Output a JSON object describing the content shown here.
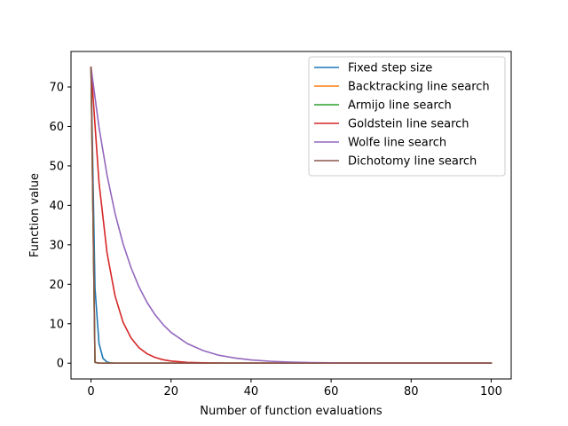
{
  "chart_data": {
    "type": "line",
    "title": "",
    "xlabel": "Number of function evaluations",
    "ylabel": "Function value",
    "xlim": [
      -5,
      105
    ],
    "ylim": [
      -4,
      79
    ],
    "xticks": [
      0,
      20,
      40,
      60,
      80,
      100
    ],
    "yticks": [
      0,
      10,
      20,
      30,
      40,
      50,
      60,
      70
    ],
    "grid": false,
    "legend_position": "upper right",
    "series": [
      {
        "name": "Fixed step size",
        "color": "#1f77b4",
        "x": [
          0,
          1,
          2,
          3,
          4,
          5,
          6,
          8,
          10,
          100
        ],
        "y": [
          75,
          19,
          5,
          1.2,
          0.3,
          0.08,
          0.02,
          0,
          0,
          0
        ]
      },
      {
        "name": "Backtracking line search",
        "color": "#ff7f0e",
        "x": [
          0,
          1,
          2,
          100
        ],
        "y": [
          75,
          0.2,
          0,
          0
        ]
      },
      {
        "name": "Armijo line search",
        "color": "#2ca02c",
        "x": [
          0,
          1,
          2,
          100
        ],
        "y": [
          75,
          0.2,
          0,
          0
        ]
      },
      {
        "name": "Goldstein line search",
        "color": "#d62728",
        "x": [
          0,
          2,
          4,
          6,
          8,
          10,
          12,
          14,
          16,
          18,
          20,
          24,
          28,
          32,
          36,
          40,
          50,
          60,
          80,
          100
        ],
        "y": [
          75,
          45.8,
          28,
          17.1,
          10.4,
          6.4,
          3.9,
          2.4,
          1.45,
          0.88,
          0.54,
          0.2,
          0.08,
          0.03,
          0.01,
          0,
          0,
          0,
          0,
          0
        ],
        "_": "derived"
      },
      {
        "name": "Wolfe line search",
        "color": "#9467bd",
        "x": [
          0,
          2,
          4,
          6,
          8,
          10,
          12,
          14,
          16,
          18,
          20,
          24,
          28,
          32,
          36,
          40,
          45,
          50,
          55,
          60,
          70,
          80,
          90,
          100
        ],
        "y": [
          75,
          59.8,
          47.7,
          38,
          30.3,
          24.2,
          19.3,
          15.4,
          12.3,
          9.8,
          7.8,
          5,
          3.2,
          2,
          1.3,
          0.82,
          0.47,
          0.26,
          0.15,
          0.08,
          0.03,
          0.01,
          0,
          0
        ]
      },
      {
        "name": "Dichotomy line search",
        "color": "#8c564b",
        "x": [
          0,
          1,
          2,
          100
        ],
        "y": [
          75,
          0.2,
          0,
          0
        ]
      }
    ]
  }
}
